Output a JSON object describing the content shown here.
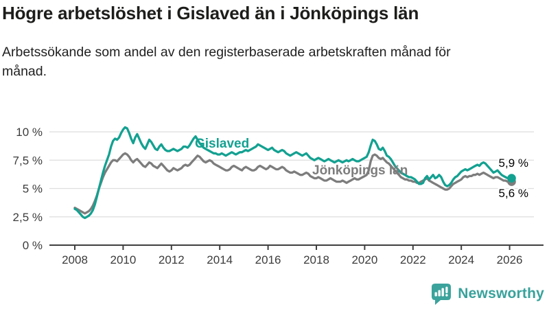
{
  "header": {
    "title": "Högre arbetslöshet i Gislaved än i Jönköpings län",
    "subtitle": "Arbetssökande som andel av den registerbaserade arbetskraften månad för månad."
  },
  "footer": {
    "brand": "Newsworthy"
  },
  "colors": {
    "accent_teal": "#13a191",
    "line_gray": "#7d7d7d",
    "grid": "#dedede",
    "axis": "#3f3f3f",
    "brand_teal": "#3ba39c",
    "text": "#1d1d1b"
  },
  "chart_data": {
    "type": "line",
    "unit": "%",
    "frequency": "monthly",
    "start": "2008-01",
    "end": "2026-02",
    "grid": "horizontal",
    "ylim": [
      0,
      11
    ],
    "x_tick_years": [
      2008,
      2010,
      2012,
      2014,
      2016,
      2018,
      2020,
      2022,
      2024,
      2026
    ],
    "y_ticks": [
      {
        "v": 0,
        "label": "0 %"
      },
      {
        "v": 2.5,
        "label": "2,5 %"
      },
      {
        "v": 5,
        "label": "5 %"
      },
      {
        "v": 7.5,
        "label": "7,5 %"
      },
      {
        "v": 10,
        "label": "10 %"
      }
    ],
    "series": [
      {
        "name": "Gislaved",
        "color": "#13a191",
        "end_label": "5,9 %",
        "last_value": 5.9,
        "values": [
          3.2,
          3.1,
          2.9,
          2.7,
          2.5,
          2.4,
          2.5,
          2.6,
          2.8,
          3.1,
          3.6,
          4.3,
          5.0,
          5.7,
          6.4,
          7.0,
          7.5,
          8.0,
          8.7,
          9.2,
          9.4,
          9.3,
          9.5,
          9.9,
          10.2,
          10.4,
          10.3,
          9.9,
          9.4,
          9.0,
          9.5,
          9.8,
          9.4,
          9.0,
          8.7,
          8.5,
          8.9,
          9.3,
          9.1,
          8.8,
          8.5,
          8.4,
          8.7,
          8.9,
          8.6,
          8.4,
          8.3,
          8.3,
          8.4,
          8.5,
          8.4,
          8.3,
          8.4,
          8.5,
          8.7,
          8.7,
          8.6,
          8.8,
          9.1,
          9.4,
          9.6,
          9.3,
          9.0,
          8.8,
          8.6,
          8.5,
          8.4,
          8.3,
          8.2,
          8.1,
          8.1,
          8.0,
          8.0,
          8.1,
          8.0,
          7.9,
          8.0,
          8.1,
          8.2,
          8.1,
          8.0,
          8.1,
          8.2,
          8.2,
          8.3,
          8.4,
          8.3,
          8.4,
          8.5,
          8.6,
          8.7,
          8.9,
          8.8,
          8.7,
          8.6,
          8.5,
          8.4,
          8.5,
          8.6,
          8.4,
          8.3,
          8.2,
          8.3,
          8.4,
          8.3,
          8.1,
          8.0,
          7.9,
          8.0,
          8.1,
          8.2,
          8.1,
          8.0,
          7.9,
          8.0,
          8.1,
          7.9,
          7.7,
          7.6,
          7.5,
          7.6,
          7.7,
          7.6,
          7.5,
          7.4,
          7.5,
          7.6,
          7.5,
          7.4,
          7.3,
          7.4,
          7.5,
          7.4,
          7.3,
          7.4,
          7.5,
          7.4,
          7.5,
          7.6,
          7.5,
          7.4,
          7.4,
          7.5,
          7.6,
          7.7,
          7.8,
          8.2,
          8.8,
          9.3,
          9.2,
          8.9,
          8.5,
          8.4,
          8.6,
          8.3,
          7.9,
          7.8,
          7.6,
          7.3,
          7.0,
          6.8,
          6.6,
          6.4,
          6.3,
          6.2,
          6.1,
          6.0,
          6.0,
          5.9,
          5.8,
          5.6,
          5.4,
          5.4,
          5.5,
          5.9,
          6.1,
          5.8,
          6.0,
          6.2,
          5.9,
          6.0,
          6.2,
          6.0,
          5.6,
          5.3,
          5.2,
          5.3,
          5.5,
          5.8,
          6.0,
          6.1,
          6.3,
          6.5,
          6.6,
          6.7,
          6.6,
          6.7,
          6.8,
          6.9,
          7.0,
          7.1,
          7.0,
          7.2,
          7.3,
          7.2,
          7.0,
          6.8,
          6.6,
          6.4,
          6.5,
          6.6,
          6.4,
          6.2,
          6.1,
          6.0,
          5.9,
          5.9,
          5.9
        ]
      },
      {
        "name": "Jönköpings län",
        "color": "#7d7d7d",
        "end_label": "5,6 %",
        "last_value": 5.6,
        "values": [
          3.3,
          3.2,
          3.1,
          3.0,
          2.9,
          2.8,
          2.9,
          3.0,
          3.2,
          3.5,
          3.9,
          4.4,
          5.0,
          5.5,
          6.0,
          6.4,
          6.7,
          7.0,
          7.3,
          7.5,
          7.5,
          7.4,
          7.6,
          7.8,
          8.0,
          8.1,
          8.0,
          7.8,
          7.5,
          7.3,
          7.5,
          7.6,
          7.4,
          7.2,
          7.0,
          6.9,
          7.1,
          7.3,
          7.2,
          7.0,
          6.9,
          6.8,
          7.0,
          7.2,
          7.0,
          6.8,
          6.6,
          6.5,
          6.6,
          6.8,
          6.7,
          6.6,
          6.7,
          6.8,
          7.0,
          7.1,
          7.0,
          7.1,
          7.3,
          7.5,
          7.7,
          7.9,
          7.8,
          7.6,
          7.4,
          7.3,
          7.4,
          7.5,
          7.4,
          7.2,
          7.1,
          7.0,
          6.9,
          6.8,
          6.7,
          6.6,
          6.6,
          6.7,
          6.9,
          7.0,
          6.9,
          6.8,
          6.7,
          6.6,
          6.8,
          6.9,
          6.8,
          6.7,
          6.6,
          6.6,
          6.7,
          6.9,
          7.0,
          6.9,
          6.8,
          6.7,
          6.8,
          7.0,
          6.9,
          6.8,
          6.7,
          6.7,
          6.8,
          6.9,
          6.8,
          6.6,
          6.5,
          6.4,
          6.4,
          6.5,
          6.4,
          6.3,
          6.2,
          6.2,
          6.3,
          6.4,
          6.3,
          6.1,
          6.0,
          5.9,
          5.9,
          6.0,
          5.9,
          5.8,
          5.7,
          5.7,
          5.8,
          5.9,
          5.8,
          5.7,
          5.6,
          5.6,
          5.6,
          5.7,
          5.6,
          5.5,
          5.6,
          5.7,
          5.8,
          5.9,
          5.8,
          5.8,
          5.9,
          6.0,
          6.1,
          6.2,
          6.6,
          7.4,
          7.9,
          8.0,
          7.9,
          7.7,
          7.6,
          7.7,
          7.5,
          7.3,
          7.2,
          7.0,
          6.8,
          6.6,
          6.4,
          6.2,
          6.0,
          5.9,
          5.8,
          5.8,
          5.7,
          5.7,
          5.6,
          5.6,
          5.5,
          5.5,
          5.6,
          5.7,
          5.8,
          5.9,
          5.7,
          5.6,
          5.5,
          5.4,
          5.3,
          5.2,
          5.1,
          5.0,
          4.9,
          4.9,
          5.0,
          5.2,
          5.4,
          5.5,
          5.6,
          5.7,
          5.8,
          6.0,
          6.1,
          6.0,
          6.1,
          6.1,
          6.2,
          6.2,
          6.3,
          6.2,
          6.3,
          6.4,
          6.3,
          6.2,
          6.1,
          6.0,
          5.9,
          6.0,
          6.0,
          5.9,
          5.8,
          5.7,
          5.7,
          5.6,
          5.6,
          5.6
        ]
      }
    ]
  }
}
